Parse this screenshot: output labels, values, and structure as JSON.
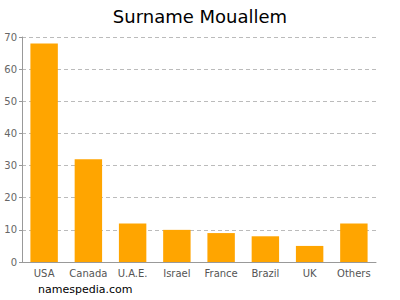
{
  "chart_data": {
    "type": "bar",
    "title": "Surname Mouallem",
    "categories": [
      "USA",
      "Canada",
      "U.A.E.",
      "Israel",
      "France",
      "Brazil",
      "UK",
      "Others"
    ],
    "values": [
      68,
      32,
      12,
      10,
      9,
      8,
      5,
      12
    ],
    "color": "#ffa500",
    "ylim": [
      0,
      70
    ],
    "yticks": [
      0,
      10,
      20,
      30,
      40,
      50,
      60,
      70
    ],
    "grid": true,
    "annotation": "namespedia.com"
  }
}
